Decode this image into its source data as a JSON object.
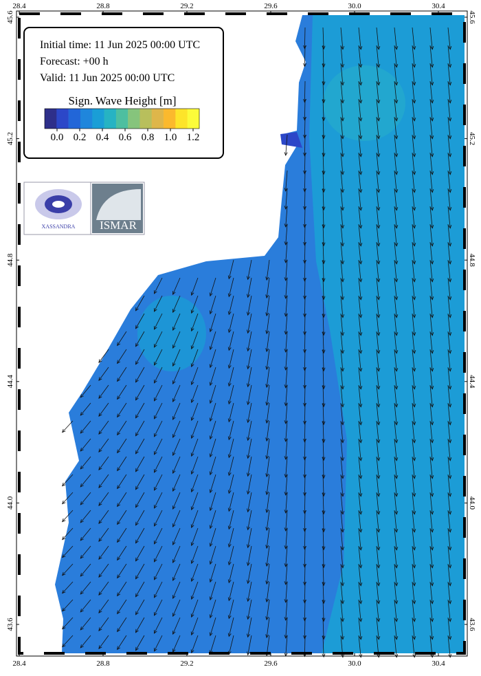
{
  "info": {
    "initial_time": "Initial time: 11 Jun 2025 00:00 UTC",
    "forecast": "Forecast: +00 h",
    "valid": "Valid: 11 Jun 2025 00:00 UTC"
  },
  "colorbar": {
    "title": "Sign. Wave Height [m]",
    "colors": [
      "#2e2f8a",
      "#2c47c8",
      "#2266d8",
      "#1f86dc",
      "#1a9ed6",
      "#26b3c3",
      "#4dbfa0",
      "#86c47c",
      "#b8bf5c",
      "#deb64a",
      "#fbb92d",
      "#fde42a",
      "#fbfb3a"
    ],
    "ticks": [
      {
        "value": 0,
        "label": "0.0"
      },
      0.2,
      0.4,
      0.6,
      0.8,
      {
        "value": 1,
        "label": "1.0"
      },
      1.2
    ]
  },
  "lon_ticks": [
    28.4,
    28.8,
    29.2,
    29.6,
    {
      "value": 30,
      "label": "30.0"
    },
    30.4
  ],
  "lat_ticks": [
    43.6,
    {
      "value": 44,
      "label": "44.0"
    },
    44.4,
    44.8,
    45.2,
    45.6
  ],
  "logos": [
    "XASSANDRA",
    "ISMAR"
  ]
}
